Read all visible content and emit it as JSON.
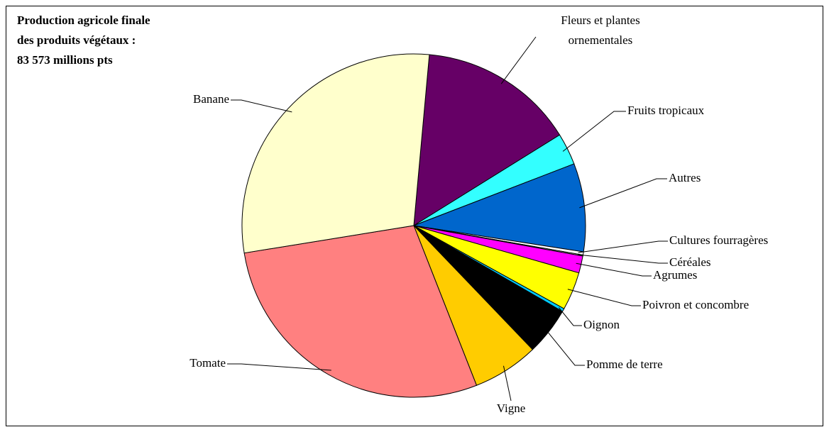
{
  "chart_data": {
    "type": "pie",
    "title": [
      "Production agricole finale",
      "des produits végétaux :",
      "83 573 millions  pts"
    ],
    "categories": [
      "Fleurs et plantes ornementales",
      "Fruits tropicaux",
      "Autres",
      "Cultures fourragères",
      "Céréales",
      "Agrumes",
      "Poivron et concombre",
      "Oignon",
      "Pomme de terre",
      "Vigne",
      "Tomate",
      "Banane"
    ],
    "values": [
      14.7,
      3.0,
      8.3,
      0.3,
      0.1,
      1.6,
      3.6,
      0.3,
      4.5,
      6.2,
      28.4,
      29.0
    ],
    "colors": [
      "#660066",
      "#33ffff",
      "#0066cc",
      "#ffffff",
      "#cccccc",
      "#ff00ff",
      "#ffff00",
      "#00ccff",
      "#000000",
      "#ffcc00",
      "#ff8080",
      "#ffffcc"
    ]
  }
}
